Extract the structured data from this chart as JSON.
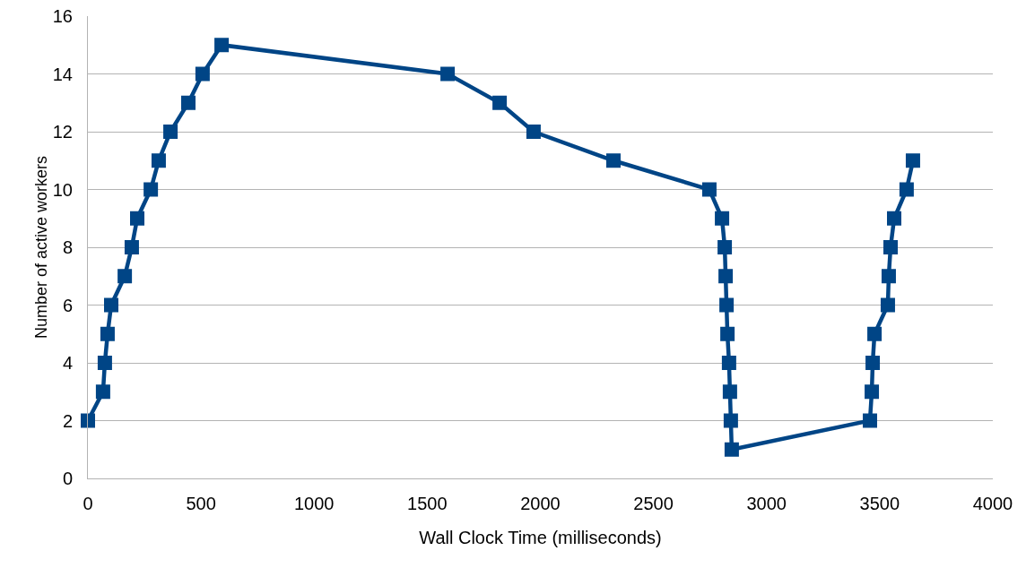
{
  "chart_data": {
    "type": "line",
    "xlabel": "Wall Clock Time (milliseconds)",
    "ylabel": "Number of active workers",
    "x": [
      0,
      67,
      75,
      87,
      103,
      163,
      194,
      218,
      278,
      313,
      365,
      444,
      507,
      591,
      1590,
      1820,
      1970,
      2323,
      2747,
      2803,
      2815,
      2819,
      2823,
      2827,
      2834,
      2838,
      2842,
      2846,
      3457,
      3465,
      3469,
      3477,
      3536,
      3540,
      3548,
      3564,
      3619,
      3647
    ],
    "series": [
      {
        "color": "#004586",
        "values": [
          2,
          3,
          4,
          5,
          6,
          7,
          8,
          9,
          10,
          11,
          12,
          13,
          14,
          15,
          14,
          13,
          12,
          11,
          10,
          9,
          8,
          7,
          6,
          5,
          4,
          3,
          2,
          1,
          2,
          3,
          4,
          5,
          6,
          7,
          8,
          9,
          10,
          11
        ]
      }
    ],
    "xlim": [
      0,
      4000
    ],
    "xticks": [
      0,
      500,
      1000,
      1500,
      2000,
      2500,
      3000,
      3500,
      4000
    ],
    "ylim": [
      0,
      16
    ],
    "yticks": [
      0,
      2,
      4,
      6,
      8,
      10,
      12,
      14,
      16
    ],
    "grid": "y",
    "marker": "square",
    "line_style": "solid"
  }
}
